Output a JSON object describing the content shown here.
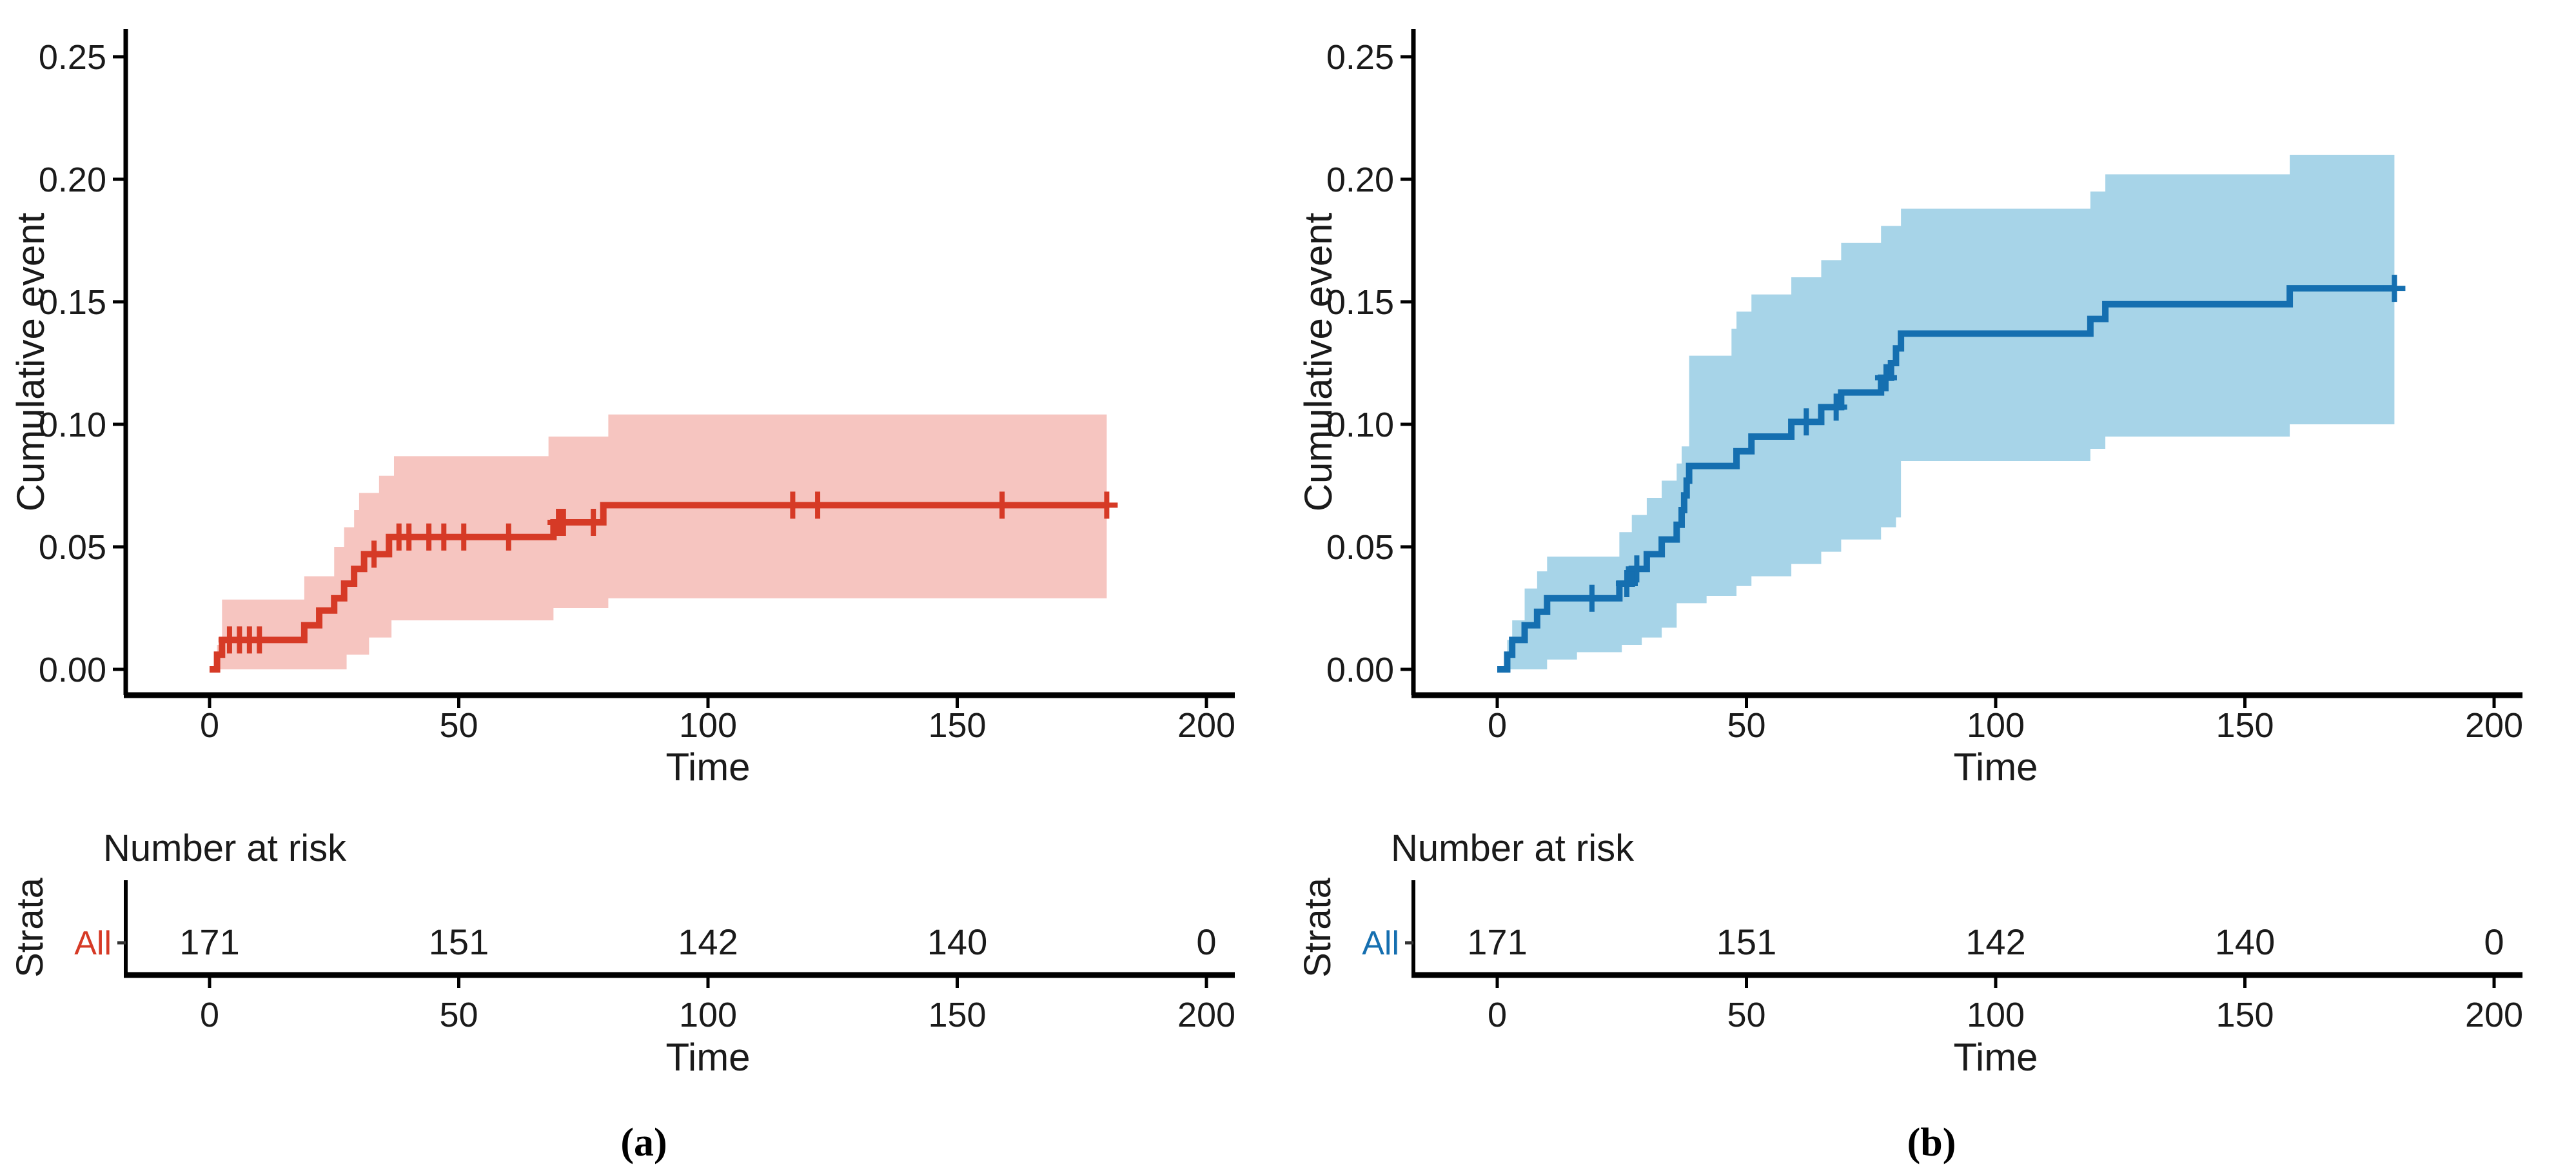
{
  "figure": {
    "type": "km-cumulative-incidence-pair",
    "background": "#ffffff",
    "text_color": "#1a1a1a",
    "axis_color": "#000000"
  },
  "chart_data": [
    {
      "type": "line",
      "id": "a",
      "caption": "(a)",
      "xlabel": "Time",
      "ylabel": "Cumulative event",
      "xlim": [
        0,
        200
      ],
      "ylim": [
        0,
        0.26
      ],
      "x_ticks": [
        0,
        50,
        100,
        150,
        200
      ],
      "y_ticks": [
        0,
        0.05,
        0.1,
        0.15,
        0.2,
        0.25
      ],
      "y_tick_labels": [
        "0.00",
        "0.05",
        "0.10",
        "0.15",
        "0.20",
        "0.25"
      ],
      "grid": false,
      "legend": "none",
      "color": "#D63A26",
      "band_color": "#F6C5C0",
      "end_time": 180,
      "series": [
        {
          "name": "All — cumulative event",
          "role": "step",
          "points": [
            [
              0,
              0
            ],
            [
              1.5,
              0.006
            ],
            [
              2.5,
              0.012
            ],
            [
              19,
              0.018
            ],
            [
              22,
              0.024
            ],
            [
              25,
              0.029
            ],
            [
              27,
              0.035
            ],
            [
              29,
              0.041
            ],
            [
              31,
              0.047
            ],
            [
              36,
              0.054
            ],
            [
              69,
              0.06
            ],
            [
              79,
              0.067
            ]
          ]
        },
        {
          "name": "95% CI upper",
          "role": "ci-upper",
          "points": [
            [
              1.5,
              0.01
            ],
            [
              2.5,
              0.0285
            ],
            [
              19,
              0.038
            ],
            [
              25,
              0.05
            ],
            [
              27,
              0.058
            ],
            [
              29,
              0.065
            ],
            [
              30,
              0.072
            ],
            [
              34,
              0.079
            ],
            [
              37,
              0.087
            ],
            [
              68,
              0.095
            ],
            [
              80,
              0.104
            ]
          ]
        },
        {
          "name": "95% CI lower",
          "role": "ci-lower",
          "points": [
            [
              1.5,
              0.0
            ],
            [
              27.5,
              0.006
            ],
            [
              32,
              0.013
            ],
            [
              36.5,
              0.02
            ],
            [
              69,
              0.025
            ],
            [
              80,
              0.029
            ]
          ]
        }
      ],
      "censor_marks": [
        [
          4,
          0.012
        ],
        [
          6,
          0.012
        ],
        [
          8,
          0.012
        ],
        [
          10,
          0.012
        ],
        [
          33,
          0.047
        ],
        [
          38,
          0.054
        ],
        [
          40,
          0.054
        ],
        [
          44,
          0.054
        ],
        [
          47,
          0.054
        ],
        [
          51,
          0.054
        ],
        [
          60,
          0.054
        ],
        [
          70,
          0.06
        ],
        [
          71,
          0.06
        ],
        [
          77,
          0.06
        ],
        [
          117,
          0.067
        ],
        [
          122,
          0.067
        ],
        [
          159,
          0.067
        ],
        [
          180,
          0.067
        ]
      ],
      "risk_table": {
        "title": "Number at risk",
        "strata_axis_label": "Strata",
        "row_label": "All",
        "times": [
          0,
          50,
          100,
          150,
          200
        ],
        "counts": [
          "171",
          "151",
          "142",
          "140",
          "0"
        ],
        "xlabel": "Time"
      }
    },
    {
      "type": "line",
      "id": "b",
      "caption": "(b)",
      "xlabel": "Time",
      "ylabel": "Cumulative event",
      "xlim": [
        0,
        200
      ],
      "ylim": [
        0,
        0.26
      ],
      "x_ticks": [
        0,
        50,
        100,
        150,
        200
      ],
      "y_ticks": [
        0,
        0.05,
        0.1,
        0.15,
        0.2,
        0.25
      ],
      "y_tick_labels": [
        "0.00",
        "0.05",
        "0.10",
        "0.15",
        "0.20",
        "0.25"
      ],
      "grid": false,
      "legend": "none",
      "color": "#156FB0",
      "band_color": "#A7D4E8",
      "end_time": 180,
      "series": [
        {
          "name": "All — cumulative event",
          "role": "step",
          "points": [
            [
              0,
              0
            ],
            [
              2,
              0.006
            ],
            [
              3,
              0.012
            ],
            [
              5.5,
              0.018
            ],
            [
              8,
              0.0235
            ],
            [
              10,
              0.029
            ],
            [
              24.5,
              0.035
            ],
            [
              27,
              0.041
            ],
            [
              30,
              0.047
            ],
            [
              33,
              0.053
            ],
            [
              36,
              0.059
            ],
            [
              37,
              0.065
            ],
            [
              37.5,
              0.071
            ],
            [
              38,
              0.077
            ],
            [
              38.5,
              0.083
            ],
            [
              48,
              0.089
            ],
            [
              51,
              0.095
            ],
            [
              59,
              0.101
            ],
            [
              65,
              0.107
            ],
            [
              69,
              0.113
            ],
            [
              77,
              0.119
            ],
            [
              79,
              0.125
            ],
            [
              80,
              0.131
            ],
            [
              81,
              0.137
            ],
            [
              119,
              0.143
            ],
            [
              122,
              0.149
            ],
            [
              159,
              0.1555
            ]
          ]
        },
        {
          "name": "95% CI upper",
          "role": "ci-upper",
          "points": [
            [
              2,
              0.012
            ],
            [
              3,
              0.02
            ],
            [
              5.5,
              0.033
            ],
            [
              8,
              0.04
            ],
            [
              10,
              0.046
            ],
            [
              24.5,
              0.056
            ],
            [
              27,
              0.063
            ],
            [
              30,
              0.07
            ],
            [
              33,
              0.077
            ],
            [
              36,
              0.084
            ],
            [
              37,
              0.091
            ],
            [
              38.5,
              0.128
            ],
            [
              47,
              0.139
            ],
            [
              48,
              0.146
            ],
            [
              51,
              0.153
            ],
            [
              59,
              0.16
            ],
            [
              65,
              0.167
            ],
            [
              69,
              0.174
            ],
            [
              77,
              0.181
            ],
            [
              81,
              0.188
            ],
            [
              119,
              0.195
            ],
            [
              122,
              0.202
            ],
            [
              159,
              0.21
            ]
          ]
        },
        {
          "name": "95% CI lower",
          "role": "ci-lower",
          "points": [
            [
              2,
              0.0
            ],
            [
              10,
              0.004
            ],
            [
              16,
              0.007
            ],
            [
              25,
              0.01
            ],
            [
              29,
              0.013
            ],
            [
              33,
              0.017
            ],
            [
              36,
              0.027
            ],
            [
              42,
              0.03
            ],
            [
              48,
              0.034
            ],
            [
              51,
              0.038
            ],
            [
              59,
              0.043
            ],
            [
              65,
              0.048
            ],
            [
              69,
              0.053
            ],
            [
              77,
              0.058
            ],
            [
              80,
              0.062
            ],
            [
              81,
              0.085
            ],
            [
              119,
              0.09
            ],
            [
              122,
              0.095
            ],
            [
              159,
              0.1
            ]
          ]
        }
      ],
      "censor_marks": [
        [
          19,
          0.029
        ],
        [
          26,
          0.035
        ],
        [
          28,
          0.041
        ],
        [
          62,
          0.101
        ],
        [
          68,
          0.107
        ],
        [
          78,
          0.119
        ],
        [
          180,
          0.1555
        ]
      ],
      "risk_table": {
        "title": "Number at risk",
        "strata_axis_label": "Strata",
        "row_label": "All",
        "times": [
          0,
          50,
          100,
          150,
          200
        ],
        "counts": [
          "171",
          "151",
          "142",
          "140",
          "0"
        ],
        "xlabel": "Time"
      }
    }
  ]
}
